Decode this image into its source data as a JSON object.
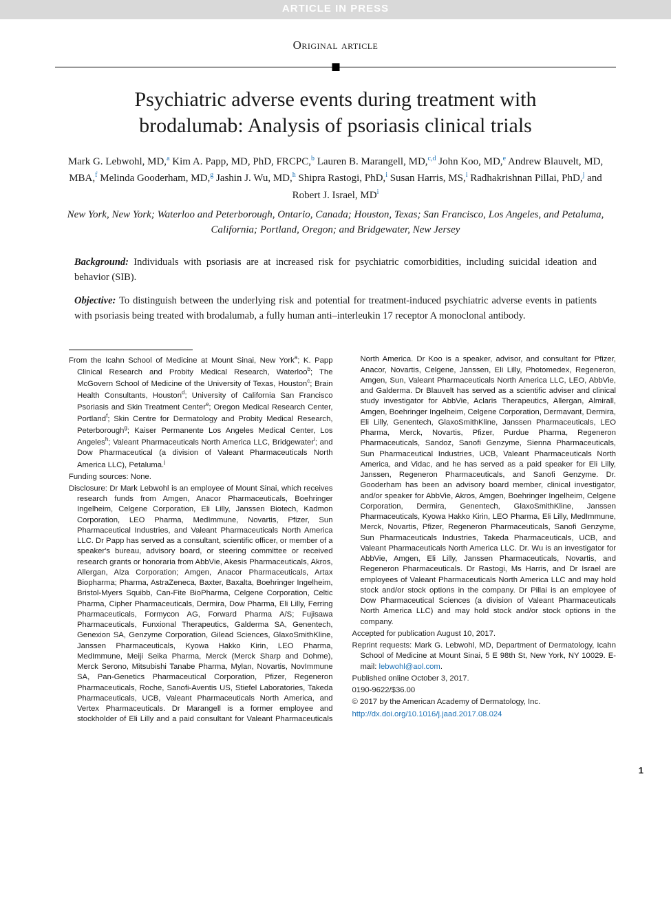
{
  "banner": "ARTICLE IN PRESS",
  "article_type": "Original article",
  "title": "Psychiatric adverse events during treatment with brodalumab: Analysis of psoriasis clinical trials",
  "authors_html": "Mark G. Lebwohl, MD,<sup>a</sup> Kim A. Papp, MD, PhD, FRCPC,<sup>b</sup> Lauren B. Marangell, MD,<sup>c,d</sup> John Koo, MD,<sup>e</sup> Andrew Blauvelt, MD, MBA,<sup>f</sup> Melinda Gooderham, MD,<sup>g</sup> Jashin J. Wu, MD,<sup>h</sup> Shipra Rastogi, PhD,<sup>i</sup> Susan Harris, MS,<sup>i</sup> Radhakrishnan Pillai, PhD,<sup>j</sup> and Robert J. Israel, MD<sup>i</sup>",
  "affil_cities": "New York, New York; Waterloo and Peterborough, Ontario, Canada; Houston, Texas; San Francisco, Los Angeles, and Petaluma, California; Portland, Oregon; and Bridgewater, New Jersey",
  "abstract": {
    "background_label": "Background:",
    "background_text": " Individuals with psoriasis are at increased risk for psychiatric comorbidities, including suicidal ideation and behavior (SIB).",
    "objective_label": "Objective:",
    "objective_text": " To distinguish between the underlying risk and potential for treatment-induced psychiatric adverse events in patients with psoriasis being treated with brodalumab, a fully human anti–interleukin 17 receptor A monoclonal antibody."
  },
  "footnotes": {
    "from": "From the Icahn School of Medicine at Mount Sinai, New York<sup>a</sup>; K. Papp Clinical Research and Probity Medical Research, Waterloo<sup>b</sup>; The McGovern School of Medicine of the University of Texas, Houston<sup>c</sup>; Brain Health Consultants, Houston<sup>d</sup>; University of California San Francisco Psoriasis and Skin Treatment Center<sup>e</sup>; Oregon Medical Research Center, Portland<sup>f</sup>; Skin Centre for Dermatology and Probity Medical Research, Peterborough<sup>g</sup>; Kaiser Permanente Los Angeles Medical Center, Los Angeles<sup>h</sup>; Valeant Pharmaceuticals North America LLC, Bridgewater<sup>i</sup>; and Dow Pharmaceutical (a division of Valeant Pharmaceuticals North America LLC), Petaluma.<sup>j</sup>",
    "funding": "Funding sources: None.",
    "disclosure": "Disclosure: Dr Mark Lebwohl is an employee of Mount Sinai, which receives research funds from Amgen, Anacor Pharmaceuticals, Boehringer Ingelheim, Celgene Corporation, Eli Lilly, Janssen Biotech, Kadmon Corporation, LEO Pharma, MedImmune, Novartis, Pfizer, Sun Pharmaceutical Industries, and Valeant Pharmaceuticals North America LLC. Dr Papp has served as a consultant, scientific officer, or member of a speaker's bureau, advisory board, or steering committee or received research grants or honoraria from AbbVie, Akesis Pharmaceuticals, Akros, Allergan, Alza Corporation; Amgen, Anacor Pharmaceuticals, Artax Biopharma; Pharma, AstraZeneca, Baxter, Baxalta, Boehringer Ingelheim, Bristol-Myers Squibb, Can-Fite BioPharma, Celgene Corporation, Celtic Pharma, Cipher Pharmaceuticals, Dermira, Dow Pharma, Eli Lilly, Ferring Pharmaceuticals, Formycon AG, Forward Pharma A/S; Fujisawa Pharmaceuticals, Funxional Therapeutics, Galderma SA, Genentech, Genexion SA, Genzyme Corporation, Gilead Sciences, GlaxoSmithKline, Janssen Pharmaceuticals, Kyowa Hakko Kirin, LEO Pharma, MedImmune, Meiji Seika Pharma, Merck (Merck Sharp and Dohme), Merck Serono, Mitsubishi Tanabe Pharma, Mylan, Novartis, NovImmune SA, Pan-Genetics Pharmaceutical Corporation, Pfizer, Regeneron Pharmaceuticals, Roche, Sanofi-Aventis US, Stiefel Laboratories, Takeda Pharmaceuticals, UCB, Valeant Pharmaceuticals North America, and Vertex Pharmaceuticals. Dr Marangell is a former employee and stockholder of Eli Lilly and a paid consultant for Valeant Pharmaceuticals North America. Dr Koo is a speaker, advisor, and consultant for Pfizer, Anacor, Novartis, Celgene, Janssen, Eli Lilly, Photomedex, Regeneron, Amgen, Sun, Valeant Pharmaceuticals North America LLC, LEO, AbbVie, and Galderma. Dr Blauvelt has served as a scientific adviser and clinical study investigator for AbbVie, Aclaris Therapeutics, Allergan, Almirall, Amgen, Boehringer Ingelheim, Celgene Corporation, Dermavant, Dermira, Eli Lilly, Genentech, GlaxoSmithKline, Janssen Pharmaceuticals, LEO Pharma, Merck, Novartis, Pfizer, Purdue Pharma, Regeneron Pharmaceuticals, Sandoz, Sanofi Genzyme, Sienna Pharmaceuticals, Sun Pharmaceutical Industries, UCB, Valeant Pharmaceuticals North America, and Vidac, and he has served as a paid speaker for Eli Lilly, Janssen, Regeneron Pharmaceuticals, and Sanofi Genzyme. Dr. Gooderham has been an advisory board member, clinical investigator, and/or speaker for AbbVie, Akros, Amgen, Boehringer Ingelheim, Celgene Corporation, Dermira, Genentech, GlaxoSmithKline, Janssen Pharmaceuticals, Kyowa Hakko Kirin, LEO Pharma, Eli Lilly, MedImmune, Merck, Novartis, Pfizer, Regeneron Pharmaceuticals, Sanofi Genzyme, Sun Pharmaceuticals Industries, Takeda Pharmaceuticals, UCB, and Valeant Pharmaceuticals North America LLC. Dr. Wu is an investigator for AbbVie, Amgen, Eli Lilly, Janssen Pharmaceuticals, Novartis, and Regeneron Pharmaceuticals. Dr Rastogi, Ms Harris, and Dr Israel are employees of Valeant Pharmaceuticals North America LLC and may hold stock and/or stock options in the company. Dr Pillai is an employee of Dow Pharmaceutical Sciences (a division of Valeant Pharmaceuticals North America LLC) and may hold stock and/or stock options in the company.",
    "accepted": "Accepted for publication August 10, 2017.",
    "reprint": "Reprint requests: Mark G. Lebwohl, MD, Department of Dermatology, Icahn School of Medicine at Mount Sinai, 5 E 98th St, New York, NY 10029. E-mail: ",
    "reprint_email": "lebwohl@aol.com",
    "published": "Published online October 3, 2017.",
    "issn": "0190-9622/$36.00",
    "copyright": "© 2017 by the American Academy of Dermatology, Inc.",
    "doi": "http://dx.doi.org/10.1016/j.jaad.2017.08.024"
  },
  "page_number": "1",
  "colors": {
    "banner_bg": "#d9d9d9",
    "banner_text": "#ffffff",
    "link": "#1a6fb3",
    "text": "#1a1a1a"
  }
}
